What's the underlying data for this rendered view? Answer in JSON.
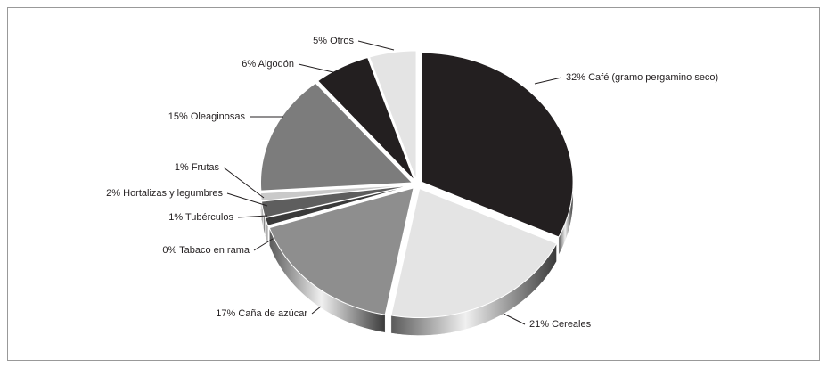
{
  "chart_data": {
    "type": "pie",
    "categories": [
      "Café (gramo pergamino seco)",
      "Cereales",
      "Caña de azúcar",
      "Tabaco en rama",
      "Tubérculos",
      "Hortalizas y legumbres",
      "Frutas",
      "Oleaginosas",
      "Algodón",
      "Otros"
    ],
    "values": [
      32,
      21,
      17,
      0,
      1,
      2,
      1,
      15,
      6,
      5
    ],
    "value_labels": [
      "32%",
      "21%",
      "17%",
      "0%",
      "1%",
      "2%",
      "1%",
      "15%",
      "6%",
      "5%"
    ],
    "colors": [
      "#231f20",
      "#e4e4e4",
      "#8e8e8e",
      "#6a6a6a",
      "#3a3a3a",
      "#5e5e5e",
      "#c9c9c9",
      "#7c7c7c",
      "#231f20",
      "#e4e4e4"
    ]
  }
}
